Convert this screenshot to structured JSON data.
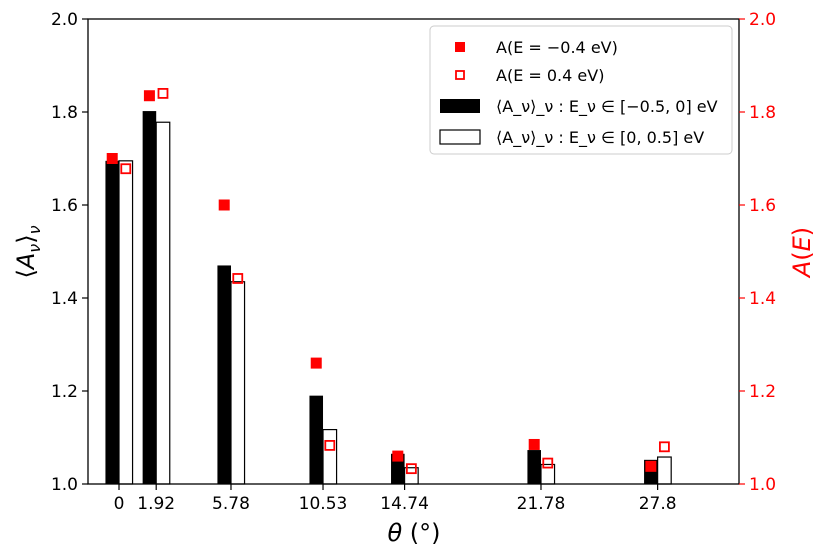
{
  "chart_data": {
    "type": "bar",
    "x_categories": [
      "0",
      "1.92",
      "5.78",
      "10.53",
      "14.74",
      "21.78",
      "27.8"
    ],
    "x_values": [
      0,
      1.92,
      5.78,
      10.53,
      14.74,
      21.78,
      27.8
    ],
    "xlabel": "θ (°)",
    "ylabel_left": "⟨A_ν⟩_ν",
    "ylabel_right": "A(E)",
    "ylim": [
      1.0,
      2.0
    ],
    "yticks": [
      "1.0",
      "1.2",
      "1.4",
      "1.6",
      "1.8",
      "2.0"
    ],
    "yticks_right": [
      "1.0",
      "1.2",
      "1.4",
      "1.6",
      "1.8",
      "2.0"
    ],
    "series": [
      {
        "name": "⟨A_ν⟩_ν : E_ν ∈ [−0.5, 0] eV",
        "kind": "bar-filled",
        "color": "#000000",
        "values": [
          1.695,
          1.802,
          1.47,
          1.19,
          1.065,
          1.073,
          1.052
        ]
      },
      {
        "name": "⟨A_ν⟩_ν : E_ν ∈ [0, 0.5] eV",
        "kind": "bar-open",
        "color": "#000000",
        "values": [
          1.695,
          1.778,
          1.435,
          1.117,
          1.035,
          1.042,
          1.058
        ]
      },
      {
        "name": "A(E = −0.4 eV)",
        "kind": "marker-filled",
        "color": "#ff0000",
        "axis": "right",
        "values": [
          1.7,
          1.835,
          1.6,
          1.26,
          1.06,
          1.085,
          1.038
        ]
      },
      {
        "name": "A(E = 0.4 eV)",
        "kind": "marker-open",
        "color": "#ff0000",
        "axis": "right",
        "values": [
          1.678,
          1.84,
          1.442,
          1.083,
          1.033,
          1.045,
          1.08
        ]
      }
    ],
    "legend_position": "top-right",
    "grid": false,
    "right_axis_color": "#ff0000"
  }
}
